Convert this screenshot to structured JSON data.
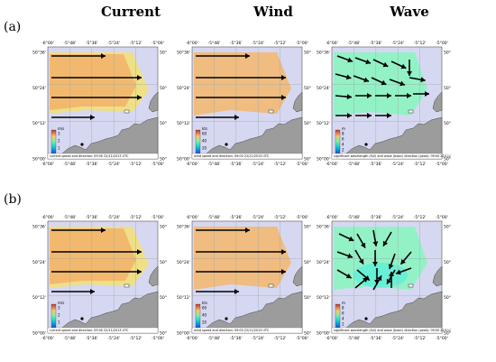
{
  "columns": [
    "Current",
    "Wind",
    "Wave"
  ],
  "rows": [
    "(a)",
    "(b)"
  ],
  "axes": {
    "lon_ticks": [
      "-6°00'",
      "-5°48'",
      "-5°36'",
      "-5°24'",
      "-5°12'",
      "-5°00'"
    ],
    "lat_ticks": [
      "50°36'",
      "50°24'",
      "50°12'",
      "50°00'"
    ]
  },
  "panels": [
    {
      "kind": "current",
      "row": 0,
      "unit": "m/s",
      "cb_ticks": [
        "3",
        "2",
        "1",
        "0"
      ],
      "caption": "current speed and direction: 09:00 22/11/2013 UTC"
    },
    {
      "kind": "wind",
      "row": 0,
      "unit": "kts",
      "cb_ticks": [
        "60",
        "40",
        "20",
        "0"
      ],
      "caption": "wind speed and direction: 09:00 22/11/2013 UTC"
    },
    {
      "kind": "wave",
      "row": 0,
      "unit": "m",
      "cb_ticks": [
        "8",
        "6",
        "4",
        "2",
        "0"
      ],
      "caption": "significant wavelength (full) and wave (basic) direction (peak): 09:00 22/11/2013 UTC"
    },
    {
      "kind": "current",
      "row": 1,
      "unit": "m/s",
      "cb_ticks": [
        "3",
        "2",
        "1",
        "0"
      ],
      "caption": "current speed and direction: 09:00 22/11/2013 UTC"
    },
    {
      "kind": "wind",
      "row": 1,
      "unit": "kts",
      "cb_ticks": [
        "60",
        "40",
        "20",
        "0"
      ],
      "caption": "wind speed and direction: 09:00 22/11/2013 UTC"
    },
    {
      "kind": "wave",
      "row": 1,
      "unit": "m",
      "cb_ticks": [
        "8",
        "6",
        "4",
        "2",
        "0"
      ],
      "caption": "significant wavelength (full) and wave (basic) direction (peak): 09:00 22/11/2013 UTC"
    }
  ],
  "colors": {
    "sea": "#d6d8f2",
    "land": "#9c9c9c",
    "current_field": "#f2b36a",
    "current_edge": "#f2e07a",
    "wind_field": "#f1bb78",
    "wave_field": "#8ff2c3",
    "wave_field2": "#64efd6",
    "arrow": "#000000"
  }
}
